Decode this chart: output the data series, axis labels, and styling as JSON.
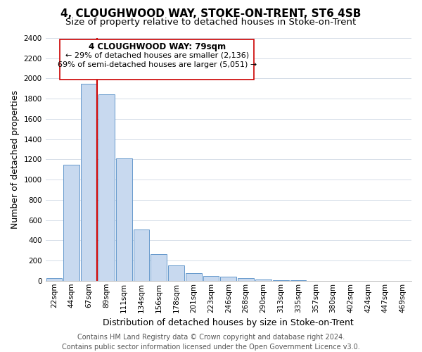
{
  "title": "4, CLOUGHWOOD WAY, STOKE-ON-TRENT, ST6 4SB",
  "subtitle": "Size of property relative to detached houses in Stoke-on-Trent",
  "xlabel": "Distribution of detached houses by size in Stoke-on-Trent",
  "ylabel": "Number of detached properties",
  "footer_line1": "Contains HM Land Registry data © Crown copyright and database right 2024.",
  "footer_line2": "Contains public sector information licensed under the Open Government Licence v3.0.",
  "bin_labels": [
    "22sqm",
    "44sqm",
    "67sqm",
    "89sqm",
    "111sqm",
    "134sqm",
    "156sqm",
    "178sqm",
    "201sqm",
    "223sqm",
    "246sqm",
    "268sqm",
    "290sqm",
    "313sqm",
    "335sqm",
    "357sqm",
    "380sqm",
    "402sqm",
    "424sqm",
    "447sqm",
    "469sqm"
  ],
  "bar_values": [
    25,
    1150,
    1950,
    1840,
    1210,
    510,
    265,
    150,
    75,
    50,
    40,
    25,
    10,
    5,
    2,
    1,
    0,
    0,
    0,
    0,
    0
  ],
  "bar_color": "#c8d9ef",
  "bar_edge_color": "#6699cc",
  "vline_color": "#cc0000",
  "ylim": [
    0,
    2400
  ],
  "yticks": [
    0,
    200,
    400,
    600,
    800,
    1000,
    1200,
    1400,
    1600,
    1800,
    2000,
    2200,
    2400
  ],
  "annotation_title": "4 CLOUGHWOOD WAY: 79sqm",
  "annotation_line1": "← 29% of detached houses are smaller (2,136)",
  "annotation_line2": "69% of semi-detached houses are larger (5,051) →",
  "title_fontsize": 11,
  "subtitle_fontsize": 9.5,
  "axis_label_fontsize": 9,
  "tick_fontsize": 7.5,
  "footer_fontsize": 7,
  "ann_title_fontsize": 8.5,
  "ann_line_fontsize": 8
}
